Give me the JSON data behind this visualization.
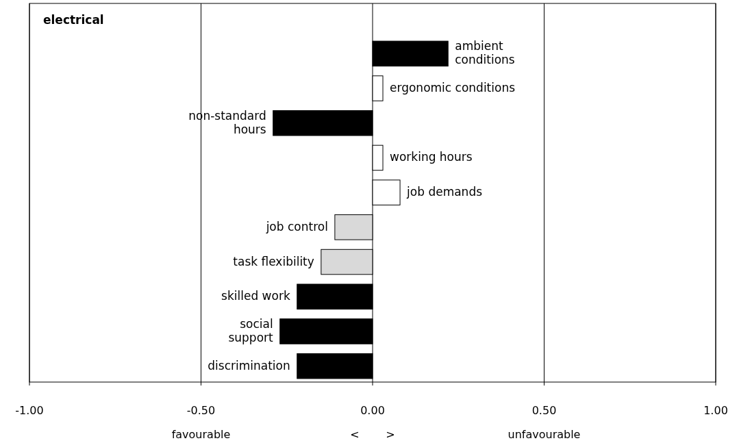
{
  "chart_data": {
    "type": "bar",
    "orientation": "horizontal",
    "title": "electrical",
    "categories": [
      "ambient\nconditions",
      "ergonomic conditions",
      "non-standard\nhours",
      "working hours",
      "job demands",
      "job control",
      "task flexibility",
      "skilled work",
      "social\nsupport",
      "discrimination"
    ],
    "values": [
      0.22,
      0.03,
      -0.29,
      0.03,
      0.08,
      -0.11,
      -0.15,
      -0.22,
      -0.27,
      -0.22
    ],
    "colors": [
      "#000000",
      "#ffffff",
      "#000000",
      "#ffffff",
      "#ffffff",
      "#d9d9d9",
      "#d9d9d9",
      "#000000",
      "#000000",
      "#000000"
    ],
    "xlim": [
      -1,
      1
    ],
    "xticks": [
      {
        "value": -1,
        "label": "-1.00"
      },
      {
        "value": -0.5,
        "label": "-0.50"
      },
      {
        "value": 0,
        "label": "0.00"
      },
      {
        "value": 0.5,
        "label": "0.50"
      },
      {
        "value": 1,
        "label": "1.00"
      }
    ],
    "grid": "x",
    "annotations": [
      "favourable",
      "<",
      ">",
      "unfavourable"
    ]
  }
}
